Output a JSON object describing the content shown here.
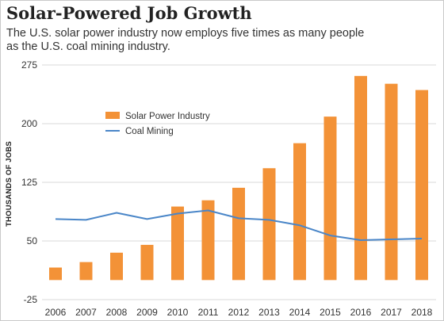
{
  "header": {
    "title": "Solar-Powered Job Growth",
    "subtitle": "The U.S. solar power industry now employs five times as many people as the U.S. coal mining industry."
  },
  "chart_data": {
    "type": "bar",
    "title": "Solar-Powered Job Growth",
    "subtitle": "The U.S. solar power industry now employs five times as many people as the U.S. coal mining industry.",
    "xlabel": "",
    "ylabel": "THOUSANDS OF JOBS",
    "categories": [
      "2006",
      "2007",
      "2008",
      "2009",
      "2010",
      "2011",
      "2012",
      "2013",
      "2014",
      "2015",
      "2016",
      "2017",
      "2018"
    ],
    "yticks": [
      -25,
      50,
      125,
      200,
      275
    ],
    "ylim": [
      -25,
      275
    ],
    "grid": true,
    "legend_position": "upper-left",
    "series": [
      {
        "name": "Solar Power Industry",
        "type": "bar",
        "color": "#F39237",
        "values": [
          16,
          23,
          35,
          45,
          94,
          102,
          118,
          143,
          175,
          209,
          261,
          251,
          243
        ]
      },
      {
        "name": "Coal Mining",
        "type": "line",
        "color": "#4A86C8",
        "values": [
          78,
          77,
          86,
          78,
          85,
          89,
          79,
          77,
          70,
          57,
          51,
          52,
          53
        ]
      }
    ]
  }
}
